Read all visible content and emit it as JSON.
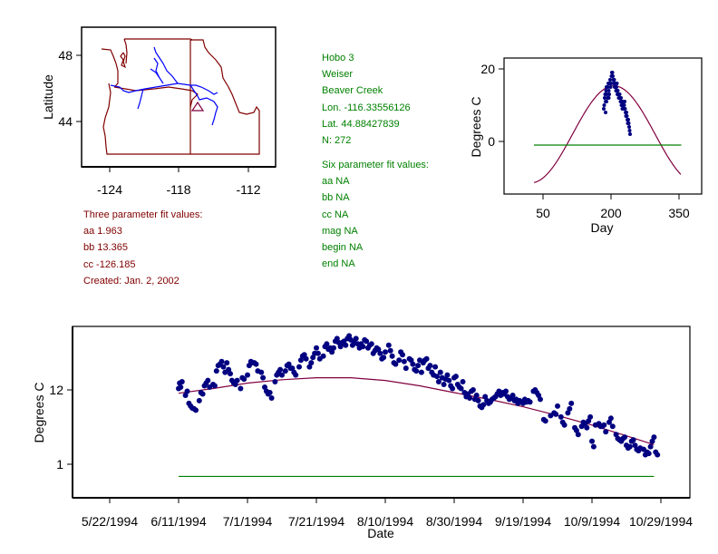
{
  "colors": {
    "map_lines": "#800000",
    "rivers": "#0000ff",
    "points": "#000080",
    "fit_curve": "#800040",
    "baseline": "#008000",
    "three_param_text": "#800000",
    "site_text": "#008000"
  },
  "site_info": {
    "lines": [
      "Hobo 3",
      "Weiser",
      "Beaver Creek",
      "Lon. -116.33556126",
      "Lat. 44.88427839",
      "N: 272"
    ]
  },
  "six_param": {
    "lines": [
      "Six parameter fit values:",
      "aa NA",
      "bb NA",
      "cc NA",
      "mag NA",
      "begin NA",
      "end NA"
    ]
  },
  "three_param": {
    "lines": [
      "Three parameter fit values:",
      "aa 1.963",
      "bb 13.365",
      "cc -126.185",
      "Created:   Jan. 2, 2002"
    ]
  },
  "chart_data": [
    {
      "type": "map",
      "title": "",
      "xlabel": "",
      "ylabel": "Latitude",
      "x_ticks": [
        "-124",
        "-118",
        "-112"
      ],
      "y_ticks": [
        "48",
        "44"
      ],
      "xlim": [
        -126.5,
        -109.5
      ],
      "ylim": [
        41.5,
        49.7
      ],
      "site_marker": {
        "lon": -116.34,
        "lat": 44.88,
        "shape": "triangle"
      }
    },
    {
      "type": "scatter",
      "title": "",
      "xlabel": "Day",
      "ylabel": "Degrees C",
      "x_ticks": [
        "50",
        "200",
        "350"
      ],
      "y_ticks": [
        "20",
        "0"
      ],
      "xlim": [
        -36,
        400
      ],
      "ylim": [
        -15,
        23
      ],
      "fit_curve": {
        "aa": 1.963,
        "bb": 13.365,
        "cc": -126.185,
        "x_range": [
          30,
          355
        ]
      },
      "baseline": {
        "y": -1.0,
        "x_range": [
          30,
          355
        ]
      },
      "points": [
        [
          184,
          9
        ],
        [
          185,
          10
        ],
        [
          186,
          12
        ],
        [
          187,
          13
        ],
        [
          188,
          11
        ],
        [
          189,
          14
        ],
        [
          190,
          15
        ],
        [
          191,
          13
        ],
        [
          192,
          12
        ],
        [
          193,
          15
        ],
        [
          194,
          16
        ],
        [
          195,
          14
        ],
        [
          196,
          13
        ],
        [
          197,
          16
        ],
        [
          198,
          17
        ],
        [
          199,
          15
        ],
        [
          200,
          16
        ],
        [
          201,
          18
        ],
        [
          202,
          19
        ],
        [
          203,
          19
        ],
        [
          204,
          18
        ],
        [
          205,
          17
        ],
        [
          206,
          16
        ],
        [
          207,
          17
        ],
        [
          208,
          15
        ],
        [
          209,
          16
        ],
        [
          210,
          15
        ],
        [
          211,
          14
        ],
        [
          212,
          15
        ],
        [
          213,
          14
        ],
        [
          214,
          13
        ],
        [
          215,
          14
        ],
        [
          216,
          13
        ],
        [
          217,
          12
        ],
        [
          218,
          13
        ],
        [
          219,
          12
        ],
        [
          220,
          12
        ],
        [
          221,
          11
        ],
        [
          222,
          12
        ],
        [
          223,
          10
        ],
        [
          224,
          11
        ],
        [
          225,
          10
        ],
        [
          226,
          11
        ],
        [
          227,
          10
        ],
        [
          228,
          9
        ],
        [
          229,
          10
        ],
        [
          230,
          11
        ],
        [
          231,
          9
        ],
        [
          232,
          8
        ],
        [
          233,
          7
        ],
        [
          234,
          8
        ],
        [
          235,
          7
        ],
        [
          236,
          6
        ],
        [
          237,
          5
        ],
        [
          238,
          6
        ],
        [
          239,
          5
        ],
        [
          240,
          4
        ],
        [
          241,
          3
        ],
        [
          242,
          2
        ],
        [
          188,
          8
        ],
        [
          190,
          11
        ],
        [
          195,
          12
        ],
        [
          213,
          16
        ],
        [
          219,
          13
        ],
        [
          225,
          9
        ]
      ]
    },
    {
      "type": "scatter",
      "title": "",
      "xlabel": "Date",
      "ylabel": "Degrees C",
      "x_ticks": [
        "5/22/1994",
        "6/11/1994",
        "7/1/1994",
        "7/21/1994",
        "8/10/1994",
        "8/30/1994",
        "9/19/1994",
        "10/9/1994",
        "10/29/1994"
      ],
      "y_ticks": [
        "12",
        "1"
      ],
      "x_start_date": "5/22/1994",
      "xlim_days": [
        -11,
        168.5
      ],
      "ylim": [
        -4.2,
        21.2
      ],
      "baseline": {
        "y": -0.8,
        "x_range_days": [
          20,
          158
        ]
      },
      "fit_curve": [
        [
          20,
          11.5
        ],
        [
          30,
          12.2
        ],
        [
          40,
          13.0
        ],
        [
          50,
          13.5
        ],
        [
          60,
          13.8
        ],
        [
          70,
          13.8
        ],
        [
          80,
          13.4
        ],
        [
          90,
          12.6
        ],
        [
          100,
          11.6
        ],
        [
          110,
          10.6
        ],
        [
          120,
          9.5
        ],
        [
          130,
          8.2
        ],
        [
          140,
          6.8
        ],
        [
          150,
          5.2
        ],
        [
          158,
          3.9
        ]
      ],
      "points": [
        [
          20,
          12.2
        ],
        [
          20.3,
          13.0
        ],
        [
          20.6,
          12.4
        ],
        [
          21,
          13.2
        ],
        [
          22,
          11.2
        ],
        [
          22.5,
          11.8
        ],
        [
          23,
          10.0
        ],
        [
          23.5,
          9.6
        ],
        [
          24,
          9.3
        ],
        [
          24.5,
          9.2
        ],
        [
          25,
          9.0
        ],
        [
          26,
          10.4
        ],
        [
          26.5,
          11.6
        ],
        [
          27,
          11.4
        ],
        [
          27.5,
          12.6
        ],
        [
          28,
          13.0
        ],
        [
          28.5,
          13.4
        ],
        [
          29,
          12.4
        ],
        [
          30,
          12.8
        ],
        [
          30.5,
          12.6
        ],
        [
          31,
          14.8
        ],
        [
          31.5,
          15.6
        ],
        [
          32,
          15.8
        ],
        [
          32.5,
          16.2
        ],
        [
          33,
          15.4
        ],
        [
          33.5,
          14.6
        ],
        [
          34,
          16.0
        ],
        [
          34.5,
          15.0
        ],
        [
          35,
          14.4
        ],
        [
          35.5,
          13.4
        ],
        [
          36,
          13.0
        ],
        [
          36.5,
          12.8
        ],
        [
          37,
          13.4
        ],
        [
          38,
          12.2
        ],
        [
          38.5,
          13.8
        ],
        [
          39,
          13.6
        ],
        [
          40,
          14.2
        ],
        [
          40.5,
          15.6
        ],
        [
          41,
          16.2
        ],
        [
          41.5,
          16.0
        ],
        [
          42,
          16.0
        ],
        [
          42.5,
          15.8
        ],
        [
          43,
          14.8
        ],
        [
          44,
          14.6
        ],
        [
          44.5,
          13.8
        ],
        [
          45,
          12.4
        ],
        [
          45.5,
          11.8
        ],
        [
          46,
          11.4
        ],
        [
          46.5,
          11.6
        ],
        [
          47,
          10.8
        ],
        [
          48,
          13.2
        ],
        [
          48.5,
          14.2
        ],
        [
          49,
          14.6
        ],
        [
          49.5,
          15.0
        ],
        [
          50,
          14.2
        ],
        [
          51,
          14.8
        ],
        [
          51.5,
          15.6
        ],
        [
          52,
          15.8
        ],
        [
          52.5,
          15.2
        ],
        [
          53,
          15.2
        ],
        [
          53.5,
          14.6
        ],
        [
          54,
          14.2
        ],
        [
          55,
          15.4
        ],
        [
          55.5,
          16.4
        ],
        [
          56,
          17.0
        ],
        [
          56.5,
          17.2
        ],
        [
          57,
          16.6
        ],
        [
          58,
          15.4
        ],
        [
          58.5,
          16.0
        ],
        [
          59,
          16.8
        ],
        [
          59.5,
          17.4
        ],
        [
          60,
          18.2
        ],
        [
          60.5,
          17.4
        ],
        [
          61,
          16.6
        ],
        [
          62,
          17.0
        ],
        [
          62.5,
          18.4
        ],
        [
          63,
          18.8
        ],
        [
          63.5,
          18.0
        ],
        [
          64,
          18.2
        ],
        [
          64.5,
          17.6
        ],
        [
          65,
          18.2
        ],
        [
          65.5,
          19.2
        ],
        [
          66,
          19.6
        ],
        [
          66.5,
          19.0
        ],
        [
          67,
          18.4
        ],
        [
          67.5,
          19.0
        ],
        [
          68,
          19.2
        ],
        [
          68.5,
          18.6
        ],
        [
          69,
          19.6
        ],
        [
          69.5,
          20.0
        ],
        [
          70,
          19.4
        ],
        [
          70.5,
          18.6
        ],
        [
          71,
          19.0
        ],
        [
          71.5,
          19.6
        ],
        [
          72,
          18.8
        ],
        [
          72.5,
          18.2
        ],
        [
          73,
          18.8
        ],
        [
          73.5,
          18.4
        ],
        [
          74,
          19.4
        ],
        [
          74.5,
          19.2
        ],
        [
          75,
          18.2
        ],
        [
          75.5,
          18.6
        ],
        [
          76,
          18.8
        ],
        [
          76.5,
          17.4
        ],
        [
          77,
          17.8
        ],
        [
          77.5,
          18.2
        ],
        [
          78,
          18.0
        ],
        [
          78.5,
          17.4
        ],
        [
          79,
          16.6
        ],
        [
          79.5,
          16.8
        ],
        [
          80,
          17.6
        ],
        [
          81,
          18.6
        ],
        [
          81.5,
          17.8
        ],
        [
          82,
          17.0
        ],
        [
          82.5,
          16.0
        ],
        [
          83,
          15.8
        ],
        [
          84,
          16.4
        ],
        [
          84.5,
          17.6
        ],
        [
          85,
          17.2
        ],
        [
          85.5,
          16.2
        ],
        [
          86,
          15.2
        ],
        [
          87,
          16.6
        ],
        [
          87.5,
          16.4
        ],
        [
          88,
          15.8
        ],
        [
          88.5,
          15.0
        ],
        [
          89,
          14.8
        ],
        [
          89.5,
          15.6
        ],
        [
          90,
          16.4
        ],
        [
          90.5,
          14.6
        ],
        [
          91,
          16.0
        ],
        [
          91.5,
          16.4
        ],
        [
          92,
          16.6
        ],
        [
          92.5,
          15.2
        ],
        [
          93,
          15.6
        ],
        [
          93.5,
          14.6
        ],
        [
          94,
          14.2
        ],
        [
          94.5,
          15.4
        ],
        [
          95,
          14.0
        ],
        [
          95.5,
          13.2
        ],
        [
          96,
          14.6
        ],
        [
          96.5,
          13.8
        ],
        [
          97,
          12.8
        ],
        [
          97.5,
          13.6
        ],
        [
          98,
          14.2
        ],
        [
          98.5,
          13.4
        ],
        [
          99,
          12.6
        ],
        [
          99.5,
          12.2
        ],
        [
          100,
          13.8
        ],
        [
          100.5,
          14.0
        ],
        [
          101,
          12.8
        ],
        [
          101.5,
          12.4
        ],
        [
          102,
          12.2
        ],
        [
          102.5,
          13.2
        ],
        [
          103,
          11.6
        ],
        [
          103.5,
          11.0
        ],
        [
          104,
          11.4
        ],
        [
          104.5,
          10.8
        ],
        [
          105,
          11.8
        ],
        [
          105.5,
          12.0
        ],
        [
          106,
          10.6
        ],
        [
          106.5,
          11.2
        ],
        [
          107,
          10.4
        ],
        [
          107.5,
          9.6
        ],
        [
          108,
          9.4
        ],
        [
          108.5,
          9.8
        ],
        [
          109,
          11.0
        ],
        [
          109.5,
          10.4
        ],
        [
          110,
          10.0
        ],
        [
          110.5,
          10.2
        ],
        [
          111,
          10.6
        ],
        [
          111.5,
          10.8
        ],
        [
          112,
          11.0
        ],
        [
          112.5,
          11.4
        ],
        [
          113,
          11.8
        ],
        [
          113.5,
          11.2
        ],
        [
          114,
          11.6
        ],
        [
          114.5,
          11.4
        ],
        [
          115,
          11.8
        ],
        [
          115.5,
          11.0
        ],
        [
          116,
          10.6
        ],
        [
          116.5,
          10.8
        ],
        [
          117,
          11.2
        ],
        [
          117.5,
          10.4
        ],
        [
          118,
          10.6
        ],
        [
          118.5,
          10.0
        ],
        [
          119,
          10.4
        ],
        [
          119.5,
          10.2
        ],
        [
          120,
          10.0
        ],
        [
          120.5,
          10.6
        ],
        [
          121,
          10.2
        ],
        [
          121.5,
          10.4
        ],
        [
          122,
          10.2
        ],
        [
          123,
          11.8
        ],
        [
          123.5,
          12.0
        ],
        [
          124,
          11.6
        ],
        [
          124.5,
          11.2
        ],
        [
          125,
          10.6
        ],
        [
          126,
          7.6
        ],
        [
          126.5,
          7.4
        ],
        [
          128,
          8.2
        ],
        [
          129,
          8.6
        ],
        [
          129.5,
          8.4
        ],
        [
          130,
          9.6
        ],
        [
          131,
          8.0
        ],
        [
          131.5,
          7.2
        ],
        [
          132,
          6.8
        ],
        [
          133,
          8.6
        ],
        [
          133.5,
          9.2
        ],
        [
          134,
          10.0
        ],
        [
          135,
          6.4
        ],
        [
          135.5,
          6.0
        ],
        [
          136,
          5.4
        ],
        [
          137,
          6.6
        ],
        [
          137.5,
          7.2
        ],
        [
          138,
          7.0
        ],
        [
          138.5,
          6.4
        ],
        [
          139,
          7.4
        ],
        [
          139.5,
          8.0
        ],
        [
          140,
          4.4
        ],
        [
          140.5,
          3.6
        ],
        [
          141,
          6.8
        ],
        [
          142,
          7.0
        ],
        [
          142.5,
          6.6
        ],
        [
          143,
          6.6
        ],
        [
          143.5,
          6.8
        ],
        [
          144,
          5.8
        ],
        [
          145,
          7.2
        ],
        [
          145.5,
          7.8
        ],
        [
          146,
          6.6
        ],
        [
          147,
          5.4
        ],
        [
          147.5,
          4.8
        ],
        [
          148,
          4.6
        ],
        [
          148.5,
          4.4
        ],
        [
          149,
          4.8
        ],
        [
          149.5,
          5.0
        ],
        [
          150,
          3.8
        ],
        [
          150.5,
          3.4
        ],
        [
          151,
          3.6
        ],
        [
          151.5,
          4.4
        ],
        [
          152,
          4.6
        ],
        [
          152.5,
          3.8
        ],
        [
          153,
          3.2
        ],
        [
          153.5,
          3.0
        ],
        [
          154,
          3.4
        ],
        [
          155,
          3.2
        ],
        [
          155.5,
          2.4
        ],
        [
          156,
          2.8
        ],
        [
          156.5,
          2.6
        ],
        [
          157,
          3.6
        ],
        [
          157.5,
          4.4
        ],
        [
          158,
          5.0
        ],
        [
          158.5,
          2.8
        ],
        [
          159,
          2.4
        ]
      ]
    }
  ]
}
